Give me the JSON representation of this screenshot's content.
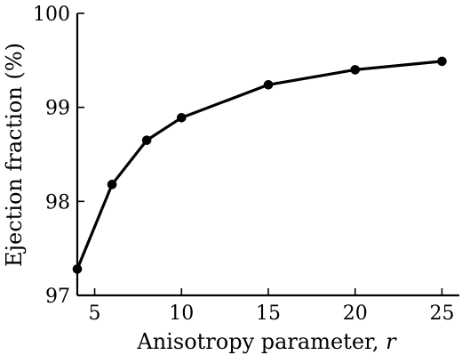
{
  "chart_data": {
    "type": "line",
    "title": "",
    "xlabel": "Anisotropy parameter, ",
    "xlabel_var": "r",
    "ylabel": "Ejection fraction (%)",
    "xlim": [
      4,
      26
    ],
    "ylim": [
      97,
      100
    ],
    "xticks": [
      5,
      10,
      15,
      20,
      25
    ],
    "yticks": [
      97,
      98,
      99,
      100
    ],
    "grid": false,
    "legend": "none",
    "series": [
      {
        "x": [
          4,
          6,
          8,
          10,
          15,
          20,
          25
        ],
        "y": [
          97.28,
          98.18,
          98.65,
          98.89,
          99.24,
          99.4,
          99.49
        ],
        "color": "#000000",
        "marker": "filled-circle"
      }
    ]
  }
}
